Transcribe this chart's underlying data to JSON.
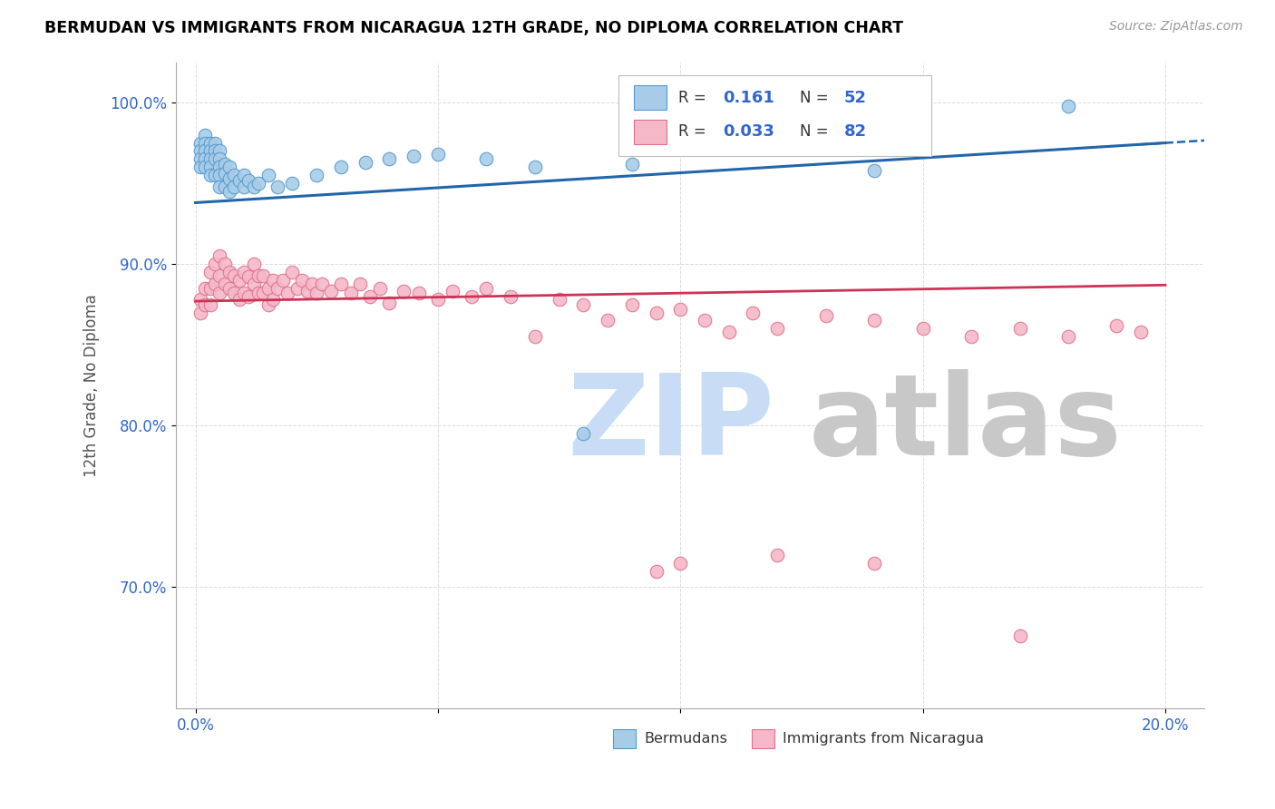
{
  "title": "BERMUDAN VS IMMIGRANTS FROM NICARAGUA 12TH GRADE, NO DIPLOMA CORRELATION CHART",
  "source": "Source: ZipAtlas.com",
  "ylabel": "12th Grade, No Diploma",
  "xlim": [
    0.0,
    0.2
  ],
  "ylim": [
    0.625,
    1.025
  ],
  "yticks": [
    0.7,
    0.8,
    0.9,
    1.0
  ],
  "ytick_labels": [
    "70.0%",
    "80.0%",
    "90.0%",
    "100.0%"
  ],
  "xticks": [
    0.0,
    0.05,
    0.1,
    0.15,
    0.2
  ],
  "xtick_labels": [
    "0.0%",
    "",
    "",
    "",
    "20.0%"
  ],
  "legend_R1": "0.161",
  "legend_N1": "52",
  "legend_R2": "0.033",
  "legend_N2": "82",
  "blue_color": "#a8cce8",
  "blue_edge": "#5599cc",
  "pink_color": "#f4b8c8",
  "pink_edge": "#e07090",
  "trendline_blue": "#2266aa",
  "trendline_pink": "#cc3355",
  "watermark_zip_color": "#c8ddf5",
  "watermark_atlas_color": "#c8c8c8",
  "tick_color": "#3366cc",
  "grid_color": "#cccccc",
  "bermuda_x": [
    0.001,
    0.001,
    0.001,
    0.001,
    0.002,
    0.002,
    0.002,
    0.002,
    0.002,
    0.003,
    0.003,
    0.003,
    0.003,
    0.003,
    0.004,
    0.004,
    0.004,
    0.004,
    0.005,
    0.005,
    0.005,
    0.005,
    0.005,
    0.006,
    0.006,
    0.006,
    0.007,
    0.007,
    0.007,
    0.008,
    0.008,
    0.009,
    0.01,
    0.01,
    0.011,
    0.012,
    0.013,
    0.015,
    0.017,
    0.02,
    0.025,
    0.03,
    0.035,
    0.04,
    0.045,
    0.05,
    0.06,
    0.07,
    0.08,
    0.09,
    0.14,
    0.18
  ],
  "bermuda_y": [
    0.975,
    0.97,
    0.965,
    0.96,
    0.98,
    0.975,
    0.97,
    0.965,
    0.96,
    0.975,
    0.97,
    0.965,
    0.96,
    0.955,
    0.975,
    0.97,
    0.965,
    0.955,
    0.97,
    0.965,
    0.96,
    0.955,
    0.948,
    0.962,
    0.956,
    0.948,
    0.96,
    0.953,
    0.945,
    0.955,
    0.948,
    0.952,
    0.955,
    0.948,
    0.952,
    0.948,
    0.95,
    0.955,
    0.948,
    0.95,
    0.955,
    0.96,
    0.963,
    0.965,
    0.967,
    0.968,
    0.965,
    0.96,
    0.795,
    0.962,
    0.958,
    0.998
  ],
  "nicaragua_x": [
    0.001,
    0.001,
    0.002,
    0.002,
    0.003,
    0.003,
    0.003,
    0.004,
    0.004,
    0.005,
    0.005,
    0.005,
    0.006,
    0.006,
    0.007,
    0.007,
    0.008,
    0.008,
    0.009,
    0.009,
    0.01,
    0.01,
    0.011,
    0.011,
    0.012,
    0.012,
    0.013,
    0.013,
    0.014,
    0.014,
    0.015,
    0.015,
    0.016,
    0.016,
    0.017,
    0.018,
    0.019,
    0.02,
    0.021,
    0.022,
    0.023,
    0.024,
    0.025,
    0.026,
    0.028,
    0.03,
    0.032,
    0.034,
    0.036,
    0.038,
    0.04,
    0.043,
    0.046,
    0.05,
    0.053,
    0.057,
    0.06,
    0.065,
    0.07,
    0.075,
    0.08,
    0.085,
    0.09,
    0.095,
    0.1,
    0.105,
    0.11,
    0.115,
    0.12,
    0.13,
    0.14,
    0.15,
    0.16,
    0.17,
    0.18,
    0.19,
    0.195,
    0.1,
    0.12,
    0.14,
    0.095,
    0.17
  ],
  "nicaragua_y": [
    0.878,
    0.87,
    0.885,
    0.875,
    0.895,
    0.885,
    0.875,
    0.9,
    0.888,
    0.905,
    0.893,
    0.882,
    0.9,
    0.888,
    0.895,
    0.885,
    0.893,
    0.882,
    0.89,
    0.878,
    0.895,
    0.882,
    0.892,
    0.88,
    0.9,
    0.888,
    0.893,
    0.882,
    0.893,
    0.882,
    0.885,
    0.875,
    0.89,
    0.878,
    0.885,
    0.89,
    0.882,
    0.895,
    0.885,
    0.89,
    0.883,
    0.888,
    0.882,
    0.888,
    0.883,
    0.888,
    0.882,
    0.888,
    0.88,
    0.885,
    0.876,
    0.883,
    0.882,
    0.878,
    0.883,
    0.88,
    0.885,
    0.88,
    0.855,
    0.878,
    0.875,
    0.865,
    0.875,
    0.87,
    0.872,
    0.865,
    0.858,
    0.87,
    0.86,
    0.868,
    0.865,
    0.86,
    0.855,
    0.86,
    0.855,
    0.862,
    0.858,
    0.715,
    0.72,
    0.715,
    0.71,
    0.67
  ]
}
